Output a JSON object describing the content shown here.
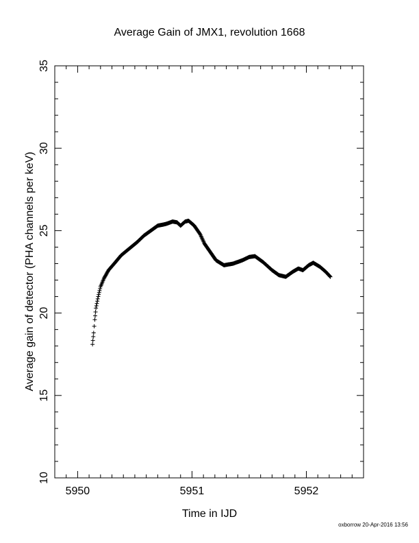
{
  "page": {
    "footer": "oxborrow 20-Apr-2016 13:56"
  },
  "chart_data": {
    "type": "scatter",
    "title": "Average Gain of JMX1, revolution 1668",
    "xlabel": "Time in IJD",
    "ylabel": "Average gain of detector (PHA channels per keV)",
    "xlim": [
      5949.8,
      5952.5
    ],
    "ylim": [
      10,
      35
    ],
    "x_ticks": [
      "5950",
      "5951",
      "5952"
    ],
    "y_ticks": [
      "10",
      "15",
      "20",
      "25",
      "30",
      "35"
    ],
    "marker": "+",
    "marker_color": "#000000",
    "grid": false,
    "series": [
      {
        "name": "",
        "anchors": [
          [
            5950.13,
            18.1
          ],
          [
            5950.14,
            18.8
          ],
          [
            5950.15,
            19.6
          ],
          [
            5950.16,
            20.3
          ],
          [
            5950.18,
            21.0
          ],
          [
            5950.2,
            21.6
          ],
          [
            5950.23,
            22.1
          ],
          [
            5950.27,
            22.6
          ],
          [
            5950.32,
            23.0
          ],
          [
            5950.38,
            23.5
          ],
          [
            5950.45,
            23.9
          ],
          [
            5950.52,
            24.3
          ],
          [
            5950.58,
            24.7
          ],
          [
            5950.64,
            25.0
          ],
          [
            5950.7,
            25.3
          ],
          [
            5950.77,
            25.4
          ],
          [
            5950.83,
            25.55
          ],
          [
            5950.87,
            25.5
          ],
          [
            5950.9,
            25.3
          ],
          [
            5950.94,
            25.55
          ],
          [
            5950.97,
            25.6
          ],
          [
            5951.02,
            25.3
          ],
          [
            5951.07,
            24.8
          ],
          [
            5951.11,
            24.2
          ],
          [
            5951.16,
            23.7
          ],
          [
            5951.21,
            23.2
          ],
          [
            5951.28,
            22.9
          ],
          [
            5951.36,
            23.0
          ],
          [
            5951.44,
            23.2
          ],
          [
            5951.5,
            23.4
          ],
          [
            5951.55,
            23.45
          ],
          [
            5951.62,
            23.1
          ],
          [
            5951.7,
            22.6
          ],
          [
            5951.76,
            22.3
          ],
          [
            5951.82,
            22.2
          ],
          [
            5951.88,
            22.5
          ],
          [
            5951.93,
            22.7
          ],
          [
            5951.97,
            22.6
          ],
          [
            5952.02,
            22.9
          ],
          [
            5952.06,
            23.05
          ],
          [
            5952.12,
            22.8
          ],
          [
            5952.17,
            22.5
          ],
          [
            5952.21,
            22.2
          ]
        ],
        "sample_step": 0.004
      }
    ]
  }
}
